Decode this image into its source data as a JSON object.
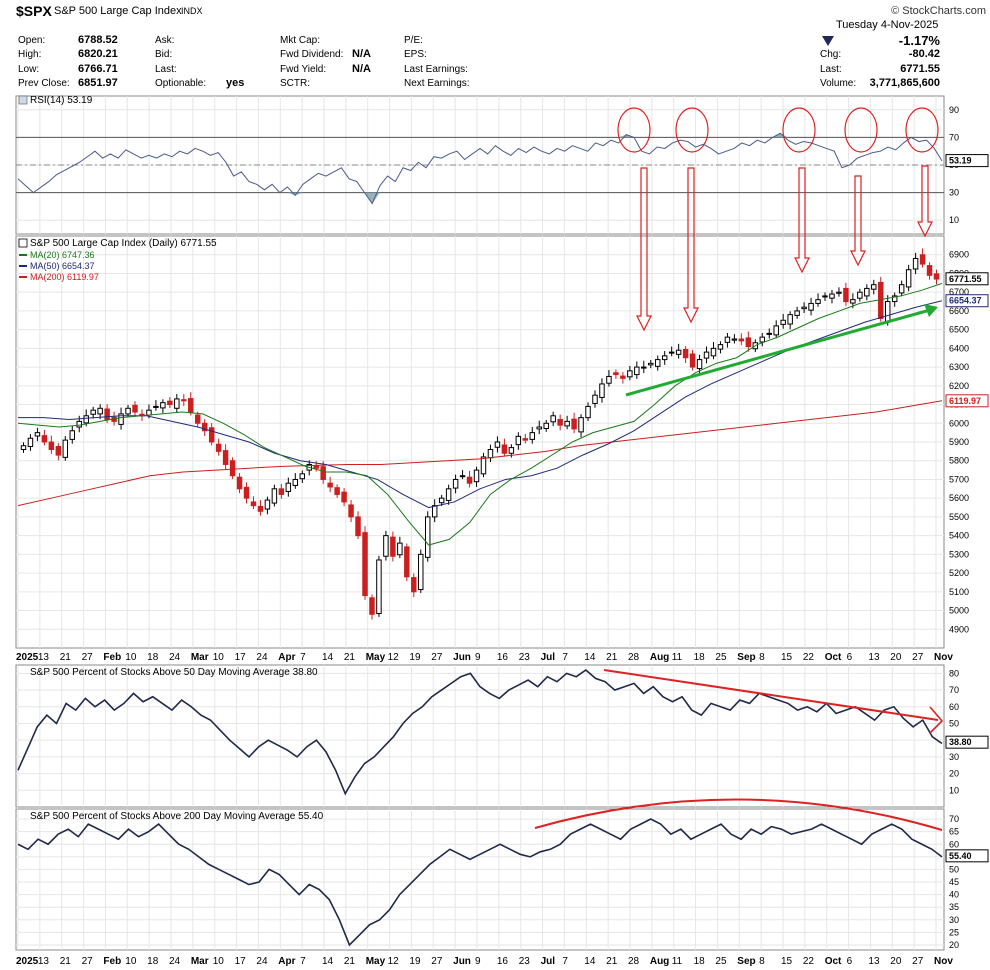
{
  "header": {
    "symbol": "$SPX",
    "name": "S&P 500 Large Cap Index",
    "exchange": "INDX",
    "brand": "© StockCharts.com",
    "date": "Tuesday  4-Nov-2025",
    "pct_change": "-1.17%",
    "fields": {
      "open_label": "Open:",
      "open": "6788.52",
      "high_label": "High:",
      "high": "6820.21",
      "low_label": "Low:",
      "low": "6766.71",
      "prev_close_label": "Prev Close:",
      "prev_close": "6851.97",
      "ask_label": "Ask:",
      "bid_label": "Bid:",
      "last_label2": "Last:",
      "optionable_label": "Optionable:",
      "optionable": "yes",
      "mktcap_label": "Mkt Cap:",
      "fwd_div_label": "Fwd Dividend:",
      "fwd_div": "N/A",
      "fwd_yield_label": "Fwd Yield:",
      "fwd_yield": "N/A",
      "sctr_label": "SCTR:",
      "pe_label": "P/E:",
      "eps_label": "EPS:",
      "last_earn_label": "Last Earnings:",
      "next_earn_label": "Next Earnings:",
      "chg_label": "Chg:",
      "chg": "-80.42",
      "last_label": "Last:",
      "last": "6771.55",
      "volume_label": "Volume:",
      "volume": "3,771,865,600"
    }
  },
  "chart_data": [
    {
      "type": "line",
      "title": "RSI(14) 53.19",
      "y_ticks": [
        10,
        30,
        50,
        70,
        90
      ],
      "ylim": [
        0,
        100
      ],
      "reference_lines": [
        30,
        50,
        70
      ],
      "last_value": "53.19",
      "values": [
        40,
        35,
        30,
        34,
        38,
        43,
        46,
        49,
        52,
        56,
        60,
        55,
        58,
        55,
        61,
        58,
        55,
        57,
        55,
        58,
        56,
        60,
        58,
        62,
        60,
        57,
        59,
        52,
        42,
        45,
        38,
        36,
        32,
        36,
        30,
        34,
        28,
        36,
        40,
        44,
        42,
        45,
        48,
        40,
        38,
        30,
        22,
        35,
        42,
        38,
        48,
        46,
        52,
        48,
        56,
        55,
        58,
        60,
        54,
        58,
        62,
        58,
        64,
        60,
        57,
        62,
        59,
        63,
        60,
        58,
        62,
        60,
        64,
        62,
        60,
        66,
        64,
        68,
        66,
        72,
        70,
        60,
        58,
        63,
        62,
        66,
        68,
        67,
        63,
        65,
        62,
        58,
        60,
        62,
        66,
        64,
        68,
        66,
        70,
        73,
        68,
        65,
        67,
        66,
        64,
        62,
        60,
        48,
        50,
        55,
        57,
        59,
        60,
        63,
        61,
        66,
        70,
        67,
        68,
        62,
        53
      ],
      "circled_peaks": [
        "Jul 28",
        "Aug 15",
        "Sep 19",
        "Oct 9",
        "Oct 29"
      ]
    },
    {
      "type": "candlestick",
      "title": "S&P 500 Large Cap Index (Daily) 6771.55",
      "legend": [
        {
          "name": "MA(20) 6747.36",
          "color": "#1a7a1a"
        },
        {
          "name": "MA(50) 6654.37",
          "color": "#1f2a7a"
        },
        {
          "name": "MA(200) 6119.97",
          "color": "#cc1f1f"
        }
      ],
      "y_ticks": [
        4900,
        5000,
        5100,
        5200,
        5300,
        5400,
        5500,
        5600,
        5700,
        5800,
        5900,
        6000,
        6100,
        6200,
        6300,
        6400,
        6500,
        6600,
        6700,
        6800,
        6900
      ],
      "ylim": [
        4800,
        7000
      ],
      "last_value": "6771.55",
      "ma_labels": [
        "6654.37",
        "6119.97"
      ],
      "close": [
        5880,
        5920,
        5950,
        5900,
        5860,
        5830,
        5910,
        5960,
        6010,
        6040,
        6070,
        6080,
        6020,
        6010,
        6050,
        6080,
        6060,
        6040,
        6070,
        6090,
        6110,
        6100,
        6130,
        6120,
        6060,
        6000,
        5960,
        5900,
        5850,
        5780,
        5720,
        5650,
        5600,
        5560,
        5530,
        5590,
        5650,
        5620,
        5680,
        5700,
        5730,
        5780,
        5760,
        5700,
        5660,
        5620,
        5580,
        5500,
        5400,
        5080,
        4980,
        5270,
        5400,
        5290,
        5360,
        5180,
        5100,
        5300,
        5500,
        5560,
        5600,
        5650,
        5700,
        5720,
        5680,
        5750,
        5820,
        5860,
        5900,
        5840,
        5870,
        5930,
        5910,
        5950,
        5980,
        6000,
        6040,
        5990,
        6010,
        5970,
        6030,
        6090,
        6150,
        6210,
        6250,
        6260,
        6240,
        6280,
        6300,
        6300,
        6320,
        6340,
        6360,
        6380,
        6390,
        6350,
        6300,
        6340,
        6380,
        6400,
        6420,
        6460,
        6450,
        6440,
        6410,
        6430,
        6460,
        6480,
        6520,
        6550,
        6580,
        6600,
        6620,
        6640,
        6660,
        6680,
        6690,
        6700,
        6650,
        6660,
        6700,
        6720,
        6740,
        6560,
        6650,
        6680,
        6740,
        6820,
        6880,
        6850,
        6790,
        6770
      ],
      "ma20": [
        6000,
        5990,
        5980,
        5990,
        6010,
        6030,
        6040,
        6050,
        6060,
        6050,
        6000,
        5940,
        5870,
        5820,
        5770,
        5740,
        5740,
        5720,
        5620,
        5480,
        5350,
        5380,
        5470,
        5620,
        5700,
        5760,
        5830,
        5900,
        5950,
        5980,
        6010,
        6100,
        6200,
        6270,
        6320,
        6350,
        6420,
        6460,
        6510,
        6560,
        6600,
        6640,
        6660,
        6680,
        6710,
        6747
      ],
      "ma50": [
        6030,
        6030,
        6020,
        6030,
        6040,
        6040,
        6010,
        5980,
        5940,
        5900,
        5840,
        5800,
        5780,
        5740,
        5700,
        5620,
        5550,
        5580,
        5650,
        5700,
        5720,
        5760,
        5830,
        5890,
        5960,
        6050,
        6140,
        6210,
        6270,
        6330,
        6390,
        6440,
        6490,
        6540,
        6580,
        6620,
        6654
      ],
      "ma200": [
        5560,
        5600,
        5640,
        5680,
        5720,
        5740,
        5750,
        5760,
        5770,
        5775,
        5780,
        5780,
        5790,
        5800,
        5810,
        5830,
        5850,
        5880,
        5900,
        5920,
        5940,
        5960,
        5980,
        6000,
        6020,
        6040,
        6060,
        6090,
        6120
      ]
    },
    {
      "type": "line",
      "title": "S&P 500 Percent of Stocks Above 50 Day Moving Average 38.80",
      "y_ticks": [
        10,
        20,
        30,
        40,
        50,
        60,
        70,
        80
      ],
      "ylim": [
        0,
        85
      ],
      "last_value": "38.80",
      "values": [
        22,
        35,
        48,
        55,
        50,
        62,
        58,
        65,
        60,
        64,
        58,
        62,
        68,
        63,
        66,
        62,
        58,
        64,
        60,
        55,
        52,
        46,
        40,
        35,
        30,
        36,
        40,
        37,
        34,
        30,
        36,
        40,
        33,
        22,
        8,
        18,
        26,
        30,
        36,
        42,
        50,
        56,
        60,
        66,
        70,
        74,
        78,
        80,
        72,
        68,
        65,
        70,
        73,
        76,
        72,
        78,
        75,
        80,
        78,
        82,
        77,
        75,
        70,
        72,
        74,
        68,
        72,
        66,
        63,
        66,
        58,
        55,
        62,
        60,
        58,
        64,
        62,
        68,
        66,
        64,
        62,
        58,
        60,
        57,
        62,
        56,
        58,
        60,
        56,
        52,
        58,
        60,
        53,
        48,
        52,
        42,
        38
      ],
      "annotation_trend": "declining"
    },
    {
      "type": "line",
      "title": "S&P 500 Percent of Stocks Above 200 Day Moving Average 55.40",
      "y_ticks": [
        20,
        25,
        30,
        35,
        40,
        45,
        50,
        55,
        60,
        65,
        70
      ],
      "ylim": [
        18,
        74
      ],
      "last_value": "55.40",
      "values": [
        60,
        58,
        62,
        60,
        64,
        66,
        63,
        68,
        66,
        64,
        62,
        66,
        63,
        65,
        68,
        64,
        60,
        58,
        55,
        52,
        50,
        48,
        46,
        44,
        45,
        50,
        48,
        44,
        40,
        44,
        42,
        38,
        30,
        20,
        24,
        28,
        30,
        34,
        40,
        44,
        48,
        52,
        55,
        58,
        56,
        54,
        56,
        58,
        60,
        58,
        56,
        55,
        57,
        58,
        60,
        64,
        66,
        68,
        66,
        64,
        62,
        66,
        68,
        70,
        68,
        64,
        66,
        62,
        64,
        66,
        68,
        64,
        62,
        66,
        64,
        67,
        66,
        64,
        65,
        66,
        68,
        66,
        64,
        62,
        60,
        64,
        66,
        68,
        66,
        62,
        60,
        58,
        55
      ],
      "annotation_trend": "rounding top"
    }
  ],
  "x_axis": {
    "labels": [
      "2025",
      "13",
      "21",
      "27",
      "Feb",
      "10",
      "18",
      "24",
      "Mar",
      "10",
      "17",
      "24",
      "Apr",
      "7",
      "14",
      "21",
      "May",
      "12",
      "19",
      "27",
      "Jun",
      "9",
      "16",
      "23",
      "Jul",
      "7",
      "14",
      "21",
      "28",
      "Aug",
      "11",
      "18",
      "25",
      "Sep",
      "8",
      "15",
      "22",
      "Oct",
      "6",
      "13",
      "20",
      "27",
      "Nov"
    ],
    "bold": [
      "2025",
      "Feb",
      "Mar",
      "Apr",
      "May",
      "Jun",
      "Jul",
      "Aug",
      "Sep",
      "Oct",
      "Nov"
    ]
  },
  "colors": {
    "up": "#000000",
    "down": "#cc1f1f",
    "ma20": "#1a7a1a",
    "ma50": "#1f2a7a",
    "ma200": "#cc1f1f",
    "rsi": "#4a5a8a",
    "breadth": "#1f2a4a",
    "annotation_red": "#dd2222",
    "annotation_green": "#22aa33"
  }
}
